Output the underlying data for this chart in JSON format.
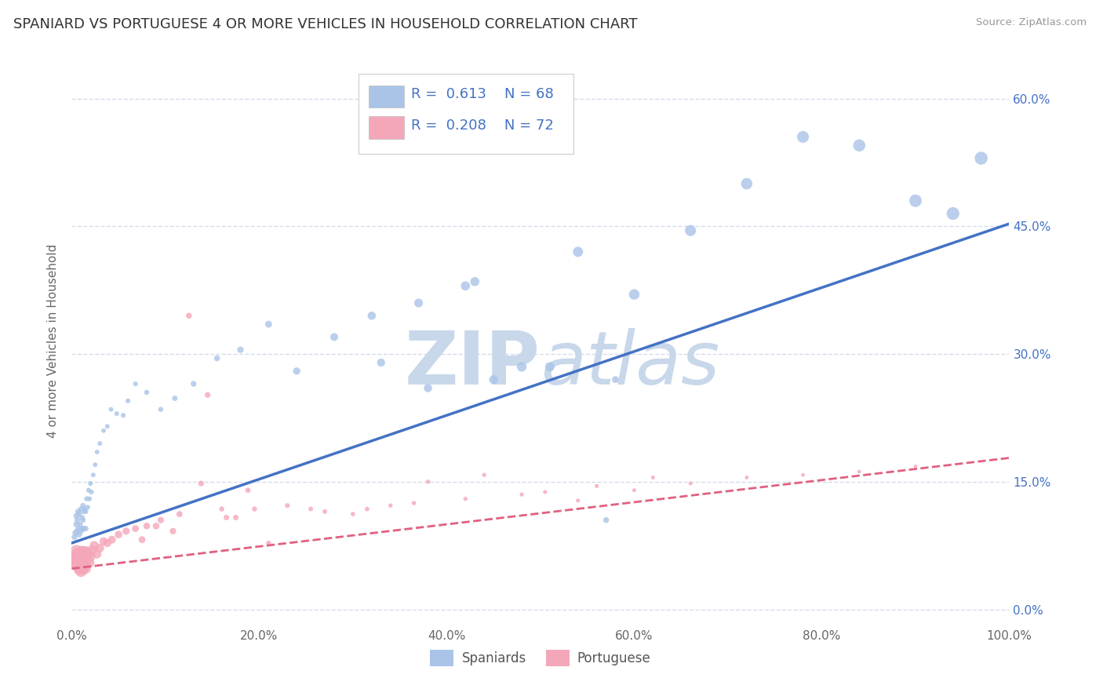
{
  "title": "SPANIARD VS PORTUGUESE 4 OR MORE VEHICLES IN HOUSEHOLD CORRELATION CHART",
  "source_text": "Source: ZipAtlas.com",
  "ylabel": "4 or more Vehicles in Household",
  "xlabel_spaniards": "Spaniards",
  "xlabel_portuguese": "Portuguese",
  "xlim": [
    0.0,
    1.0
  ],
  "ylim": [
    -0.02,
    0.65
  ],
  "x_ticks": [
    0.0,
    0.2,
    0.4,
    0.6,
    0.8,
    1.0
  ],
  "x_tick_labels": [
    "0.0%",
    "20.0%",
    "40.0%",
    "60.0%",
    "80.0%",
    "100.0%"
  ],
  "y_ticks_right": [
    0.0,
    0.15,
    0.3,
    0.45,
    0.6
  ],
  "y_tick_labels_right": [
    "0.0%",
    "15.0%",
    "30.0%",
    "45.0%",
    "60.0%"
  ],
  "r_spaniards": 0.613,
  "n_spaniards": 68,
  "r_portuguese": 0.208,
  "n_portuguese": 72,
  "color_spaniards": "#aac4e8",
  "color_portuguese": "#f4a7b9",
  "color_line_spaniards": "#4472c4",
  "color_line_portuguese": "#e06080",
  "color_tick_label": "#4472c4",
  "watermark_color": "#c8d8ea",
  "background_color": "#ffffff",
  "grid_color": "#d0d8e8",
  "sp_line_intercept": 0.078,
  "sp_line_slope": 0.375,
  "pt_line_intercept": 0.048,
  "pt_line_slope": 0.13,
  "spaniards_x": [
    0.003,
    0.004,
    0.005,
    0.005,
    0.006,
    0.006,
    0.007,
    0.007,
    0.008,
    0.008,
    0.009,
    0.01,
    0.01,
    0.011,
    0.011,
    0.012,
    0.012,
    0.013,
    0.013,
    0.014,
    0.015,
    0.015,
    0.016,
    0.017,
    0.018,
    0.019,
    0.02,
    0.021,
    0.023,
    0.025,
    0.027,
    0.03,
    0.034,
    0.038,
    0.042,
    0.048,
    0.055,
    0.06,
    0.068,
    0.08,
    0.095,
    0.11,
    0.13,
    0.155,
    0.18,
    0.21,
    0.24,
    0.28,
    0.32,
    0.37,
    0.42,
    0.48,
    0.54,
    0.6,
    0.66,
    0.72,
    0.78,
    0.84,
    0.9,
    0.94,
    0.97,
    0.33,
    0.45,
    0.51,
    0.57,
    0.38,
    0.43,
    0.58
  ],
  "spaniards_y": [
    0.085,
    0.09,
    0.1,
    0.11,
    0.092,
    0.105,
    0.095,
    0.115,
    0.088,
    0.112,
    0.1,
    0.092,
    0.118,
    0.108,
    0.095,
    0.122,
    0.105,
    0.115,
    0.095,
    0.118,
    0.115,
    0.095,
    0.13,
    0.12,
    0.14,
    0.13,
    0.148,
    0.138,
    0.158,
    0.17,
    0.185,
    0.195,
    0.21,
    0.215,
    0.235,
    0.23,
    0.228,
    0.245,
    0.265,
    0.255,
    0.235,
    0.248,
    0.265,
    0.295,
    0.305,
    0.335,
    0.28,
    0.32,
    0.345,
    0.36,
    0.38,
    0.285,
    0.42,
    0.37,
    0.445,
    0.5,
    0.555,
    0.545,
    0.48,
    0.465,
    0.53,
    0.29,
    0.27,
    0.285,
    0.105,
    0.26,
    0.385,
    0.27
  ],
  "spaniards_size": [
    30,
    32,
    30,
    30,
    30,
    28,
    28,
    30,
    28,
    28,
    25,
    28,
    25,
    25,
    28,
    25,
    25,
    22,
    25,
    22,
    22,
    25,
    22,
    22,
    20,
    20,
    20,
    20,
    18,
    18,
    18,
    18,
    18,
    18,
    18,
    18,
    20,
    20,
    20,
    22,
    22,
    25,
    28,
    30,
    35,
    40,
    45,
    52,
    58,
    65,
    72,
    80,
    88,
    95,
    102,
    110,
    118,
    125,
    132,
    138,
    142,
    55,
    68,
    75,
    30,
    58,
    70,
    40
  ],
  "portuguese_x": [
    0.003,
    0.004,
    0.005,
    0.005,
    0.006,
    0.007,
    0.007,
    0.008,
    0.008,
    0.009,
    0.01,
    0.01,
    0.011,
    0.011,
    0.012,
    0.012,
    0.013,
    0.013,
    0.014,
    0.015,
    0.015,
    0.016,
    0.017,
    0.018,
    0.019,
    0.02,
    0.022,
    0.024,
    0.027,
    0.03,
    0.034,
    0.038,
    0.043,
    0.05,
    0.058,
    0.068,
    0.08,
    0.095,
    0.115,
    0.138,
    0.165,
    0.195,
    0.23,
    0.27,
    0.315,
    0.365,
    0.42,
    0.48,
    0.54,
    0.6,
    0.66,
    0.72,
    0.78,
    0.84,
    0.9,
    0.108,
    0.145,
    0.175,
    0.21,
    0.255,
    0.3,
    0.34,
    0.125,
    0.16,
    0.188,
    0.075,
    0.09,
    0.38,
    0.44,
    0.505,
    0.56,
    0.62
  ],
  "portuguese_y": [
    0.058,
    0.062,
    0.068,
    0.055,
    0.058,
    0.065,
    0.052,
    0.06,
    0.048,
    0.058,
    0.062,
    0.045,
    0.068,
    0.055,
    0.062,
    0.048,
    0.058,
    0.068,
    0.052,
    0.062,
    0.048,
    0.068,
    0.058,
    0.065,
    0.055,
    0.062,
    0.07,
    0.075,
    0.065,
    0.072,
    0.08,
    0.078,
    0.082,
    0.088,
    0.092,
    0.095,
    0.098,
    0.105,
    0.112,
    0.148,
    0.108,
    0.118,
    0.122,
    0.115,
    0.118,
    0.125,
    0.13,
    0.135,
    0.128,
    0.14,
    0.148,
    0.155,
    0.158,
    0.162,
    0.168,
    0.092,
    0.252,
    0.108,
    0.078,
    0.118,
    0.112,
    0.122,
    0.345,
    0.118,
    0.14,
    0.082,
    0.098,
    0.15,
    0.158,
    0.138,
    0.145,
    0.155
  ],
  "portuguese_size": [
    180,
    160,
    150,
    145,
    140,
    135,
    130,
    128,
    125,
    122,
    118,
    115,
    112,
    110,
    108,
    105,
    102,
    100,
    98,
    95,
    92,
    90,
    88,
    85,
    82,
    80,
    75,
    70,
    65,
    62,
    58,
    55,
    52,
    48,
    45,
    42,
    38,
    35,
    32,
    28,
    25,
    22,
    20,
    18,
    17,
    16,
    15,
    14,
    14,
    13,
    13,
    12,
    12,
    12,
    12,
    35,
    28,
    25,
    20,
    18,
    17,
    16,
    30,
    22,
    24,
    40,
    38,
    16,
    15,
    14,
    14,
    13
  ]
}
